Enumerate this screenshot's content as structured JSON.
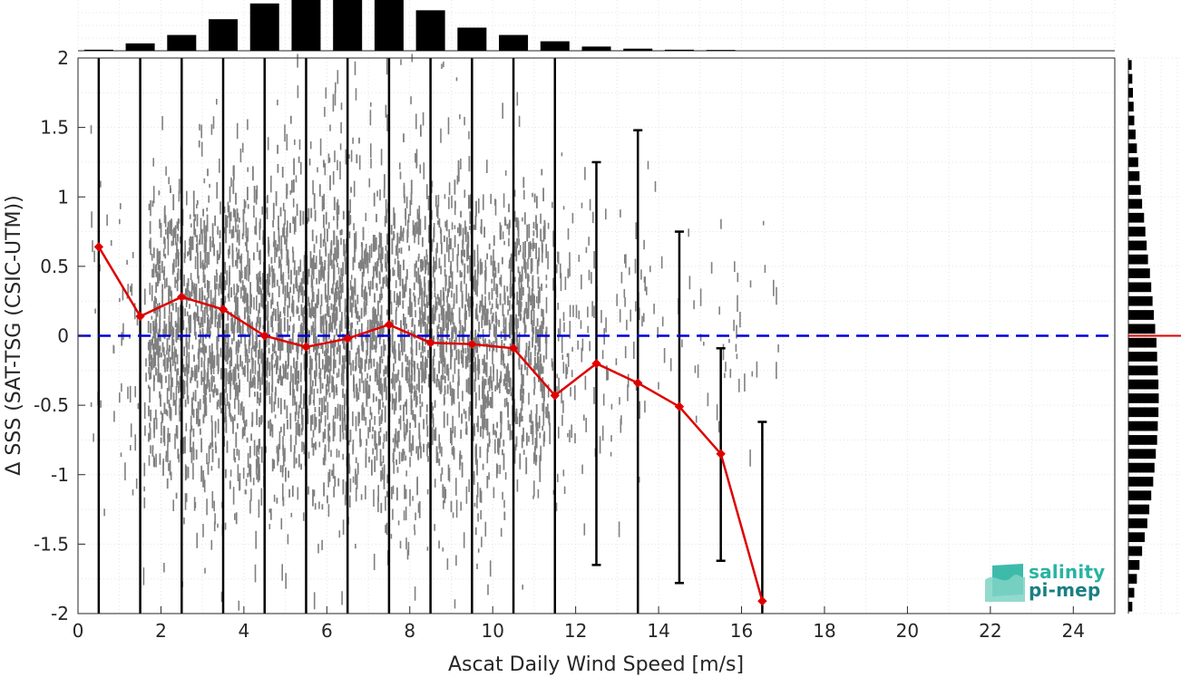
{
  "chart_data": {
    "type": "scatter",
    "xlabel": "Ascat Daily Wind Speed [m/s]",
    "ylabel": "Δ SSS (SAT-TSG (CSIC-UTM))",
    "xlim": [
      0,
      25
    ],
    "ylim": [
      -2,
      2
    ],
    "xticks": [
      "0",
      "2",
      "4",
      "6",
      "8",
      "10",
      "12",
      "14",
      "16",
      "18",
      "20",
      "22",
      "24"
    ],
    "yticks": [
      "2",
      "1.5",
      "1",
      "0.5",
      "0",
      "-0.5",
      "-1",
      "-1.5",
      "-2"
    ],
    "grid": true,
    "zero_line": {
      "y": 0,
      "color": "#0000dd",
      "style": "dashed"
    },
    "scatter_color": "#808080",
    "mean_line": {
      "name": "bin mean",
      "color": "#dd0000",
      "x": [
        0.5,
        1.5,
        2.5,
        3.5,
        4.5,
        5.5,
        6.5,
        7.5,
        8.5,
        9.5,
        10.5,
        11.5,
        12.5,
        13.5,
        14.5,
        15.5,
        16.5
      ],
      "y": [
        0.64,
        0.14,
        0.28,
        0.19,
        0.0,
        -0.08,
        -0.02,
        0.08,
        -0.05,
        -0.06,
        -0.09,
        -0.43,
        -0.2,
        -0.34,
        -0.51,
        -0.85,
        -1.91
      ]
    },
    "bin_std": [
      {
        "x": 0.5,
        "low": -2,
        "high": 2
      },
      {
        "x": 1.5,
        "low": -2,
        "high": 2
      },
      {
        "x": 2.5,
        "low": -2,
        "high": 2
      },
      {
        "x": 3.5,
        "low": -2,
        "high": 2
      },
      {
        "x": 4.5,
        "low": -2,
        "high": 2
      },
      {
        "x": 5.5,
        "low": -2,
        "high": 2
      },
      {
        "x": 6.5,
        "low": -2,
        "high": 2
      },
      {
        "x": 7.5,
        "low": -2,
        "high": 2
      },
      {
        "x": 8.5,
        "low": -2,
        "high": 2
      },
      {
        "x": 9.5,
        "low": -2,
        "high": 2
      },
      {
        "x": 10.5,
        "low": -2,
        "high": 2
      },
      {
        "x": 11.5,
        "low": -2,
        "high": 2
      },
      {
        "x": 12.5,
        "low": -1.65,
        "high": 1.25
      },
      {
        "x": 13.5,
        "low": -2,
        "high": 1.48
      },
      {
        "x": 14.5,
        "low": -1.78,
        "high": 0.75
      },
      {
        "x": 15.5,
        "low": -1.62,
        "high": -0.09
      },
      {
        "x": 16.5,
        "low": -2,
        "high": -0.62
      }
    ],
    "x_histogram": {
      "bin_centers": [
        0.5,
        1.5,
        2.5,
        3.5,
        4.5,
        5.5,
        6.5,
        7.5,
        8.5,
        9.5,
        10.5,
        11.5,
        12.5,
        13.5,
        14.5,
        15.5,
        16.5
      ],
      "relative_counts": [
        0.02,
        0.14,
        0.3,
        0.6,
        0.9,
        1.0,
        1.0,
        0.97,
        0.77,
        0.44,
        0.3,
        0.18,
        0.08,
        0.04,
        0.02,
        0.015,
        0.0
      ]
    },
    "y_histogram": {
      "bin_width": 0.1,
      "relative_counts": [
        0.1,
        0.12,
        0.14,
        0.16,
        0.18,
        0.22,
        0.26,
        0.3,
        0.34,
        0.38,
        0.42,
        0.48,
        0.52,
        0.56,
        0.6,
        0.66,
        0.7,
        0.74,
        0.78,
        0.82,
        0.86,
        0.88,
        0.9,
        0.92,
        0.93,
        0.92,
        0.9,
        0.88,
        0.84,
        0.8,
        0.76,
        0.7,
        0.64,
        0.58,
        0.5,
        0.42,
        0.34,
        0.26,
        0.18,
        0.12
      ],
      "mean_line_color": "#dd0000",
      "mean_y": 0
    }
  },
  "logo": {
    "line1": "salinity",
    "line2": "pi-mep",
    "color1": "#29b3a2",
    "color2": "#1a7f83"
  }
}
